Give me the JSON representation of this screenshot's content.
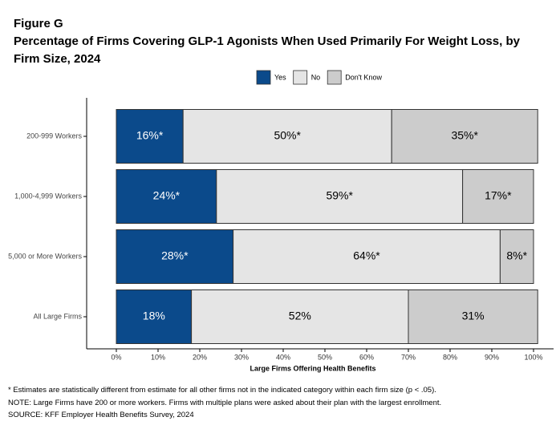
{
  "chart_data": {
    "type": "stacked-bar-horizontal",
    "figure_label": "Figure G",
    "title": "Percentage of Firms Covering GLP-1 Agonists When Used Primarily For Weight Loss, by Firm Size, 2024",
    "x_label": "Large Firms Offering Health Benefits",
    "categories": [
      "200-999 Workers",
      "1,000-4,999 Workers",
      "5,000 or More Workers",
      "All Large Firms"
    ],
    "series": [
      {
        "name": "Yes",
        "color": "#0b4a8b",
        "values": [
          16,
          24,
          28,
          18
        ],
        "value_labels": [
          "16%*",
          "24%*",
          "28%*",
          "18%"
        ]
      },
      {
        "name": "No",
        "color": "#e5e5e5",
        "values": [
          50,
          59,
          64,
          52
        ],
        "value_labels": [
          "50%*",
          "59%*",
          "64%*",
          "52%"
        ]
      },
      {
        "name": "Don't Know",
        "color": "#cccccc",
        "values": [
          35,
          17,
          8,
          31
        ],
        "value_labels": [
          "35%*",
          "17%*",
          "8%*",
          "31%"
        ]
      }
    ],
    "xlim": [
      0,
      100
    ],
    "xticks": [
      {
        "value": 0,
        "label": "0%"
      },
      {
        "value": 10,
        "label": "10%"
      },
      {
        "value": 20,
        "label": "20%"
      },
      {
        "value": 30,
        "label": "30%"
      },
      {
        "value": 40,
        "label": "40%"
      },
      {
        "value": 50,
        "label": "50%"
      },
      {
        "value": 60,
        "label": "60%"
      },
      {
        "value": 70,
        "label": "70%"
      },
      {
        "value": 80,
        "label": "80%"
      },
      {
        "value": 90,
        "label": "90%"
      },
      {
        "value": 100,
        "label": "100%"
      }
    ],
    "notes": [
      "* Estimates are statistically different from estimate for all other firms not in the indicated category within each firm size (p < .05).",
      "NOTE: Large Firms have 200 or more workers.  Firms with multiple plans were asked about their plan with the largest enrollment.",
      "SOURCE: KFF Employer Health Benefits Survey, 2024"
    ]
  }
}
